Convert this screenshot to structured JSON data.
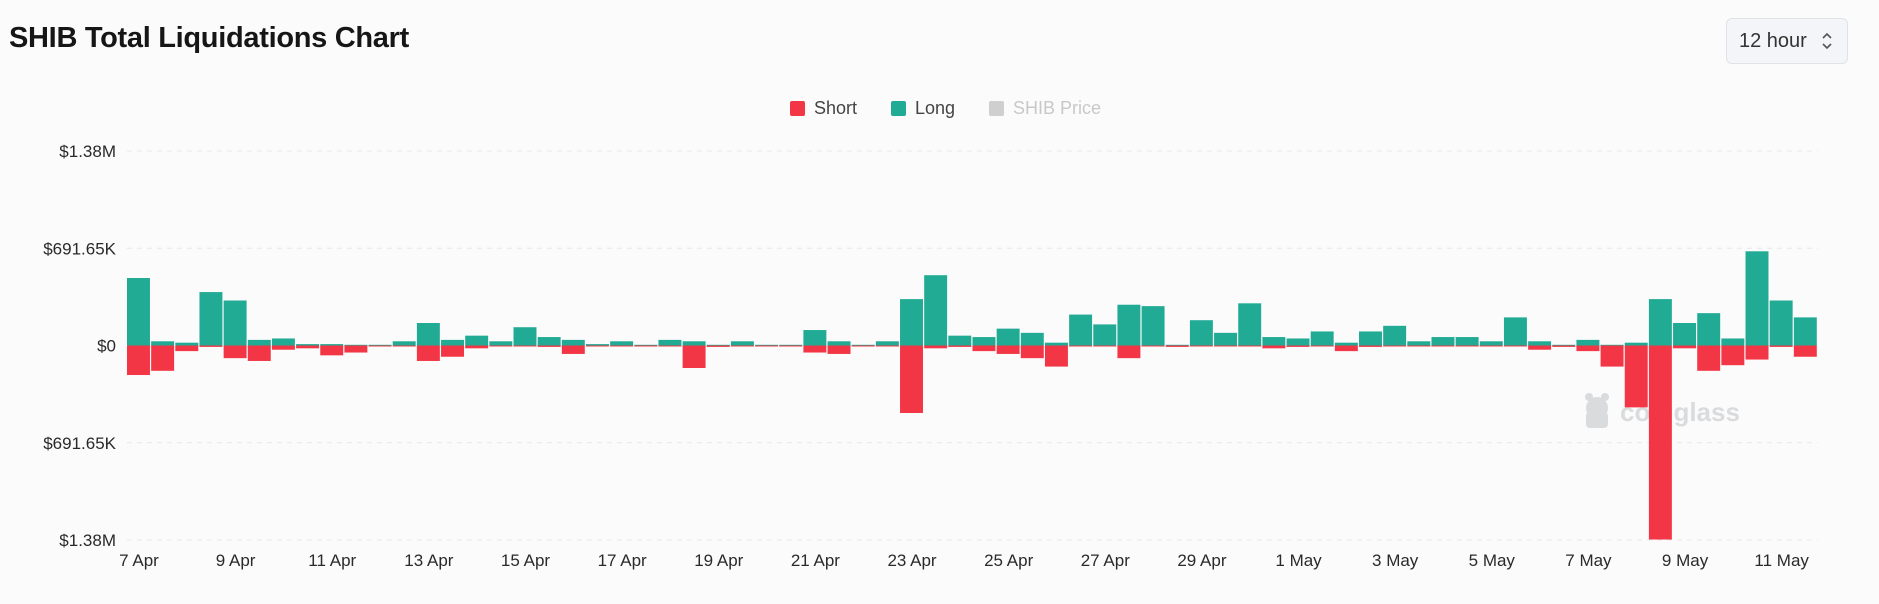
{
  "header": {
    "title": "SHIB Total Liquidations Chart",
    "interval_select": "12 hour"
  },
  "legend": [
    {
      "label": "Short",
      "color": "#f23645",
      "active": true
    },
    {
      "label": "Long",
      "color": "#22ab94",
      "active": true
    },
    {
      "label": "SHIB Price",
      "color": "#cfcfcf",
      "active": false
    }
  ],
  "watermark": "coinglass",
  "chart_data": {
    "type": "bar",
    "y_ticks": [
      "$1.38M",
      "$691.65K",
      "$0",
      "$691.65K",
      "$1.38M"
    ],
    "ylim": [
      -1383300,
      1383300
    ],
    "x_ticks": [
      "7 Apr",
      "9 Apr",
      "11 Apr",
      "13 Apr",
      "15 Apr",
      "17 Apr",
      "19 Apr",
      "21 Apr",
      "23 Apr",
      "25 Apr",
      "27 Apr",
      "29 Apr",
      "1 May",
      "3 May",
      "5 May",
      "7 May",
      "9 May",
      "11 May"
    ],
    "series": [
      {
        "name": "Long",
        "color": "#22ab94",
        "values": [
          480000,
          30000,
          20000,
          380000,
          320000,
          40000,
          50000,
          10000,
          10000,
          5000,
          5000,
          30000,
          160000,
          40000,
          70000,
          30000,
          130000,
          60000,
          40000,
          10000,
          30000,
          5000,
          40000,
          30000,
          5000,
          30000,
          5000,
          5000,
          110000,
          30000,
          5000,
          30000,
          330000,
          500000,
          70000,
          60000,
          120000,
          90000,
          20000,
          220000,
          150000,
          290000,
          280000,
          5000,
          180000,
          90000,
          300000,
          60000,
          50000,
          100000,
          20000,
          100000,
          140000,
          30000,
          60000,
          60000,
          30000,
          200000,
          30000,
          5000,
          40000,
          5000,
          20000,
          330000,
          160000,
          230000,
          50000,
          670000,
          320000,
          200000
        ]
      },
      {
        "name": "Short",
        "color": "#f23645",
        "values": [
          -210000,
          -180000,
          -40000,
          -10000,
          -90000,
          -110000,
          -30000,
          -20000,
          -70000,
          -50000,
          -5000,
          -5000,
          -110000,
          -80000,
          -20000,
          -5000,
          -5000,
          -10000,
          -60000,
          -5000,
          -5000,
          -5000,
          -5000,
          -160000,
          -10000,
          -5000,
          -5000,
          -5000,
          -50000,
          -60000,
          -5000,
          -5000,
          -480000,
          -20000,
          -10000,
          -40000,
          -60000,
          -90000,
          -150000,
          -5000,
          -5000,
          -90000,
          -5000,
          -10000,
          -5000,
          -5000,
          -5000,
          -20000,
          -10000,
          -5000,
          -40000,
          -10000,
          -5000,
          -5000,
          -5000,
          -5000,
          -5000,
          -5000,
          -30000,
          -10000,
          -40000,
          -150000,
          -440000,
          -1380000,
          -20000,
          -180000,
          -140000,
          -100000,
          -10000,
          -80000
        ]
      }
    ]
  }
}
